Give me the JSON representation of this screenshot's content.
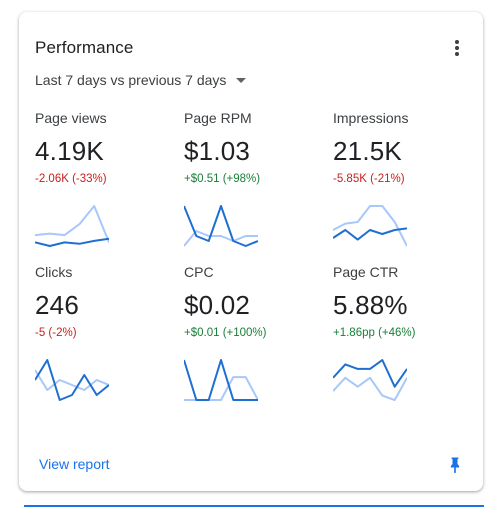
{
  "card": {
    "title": "Performance",
    "date_range": "Last 7 days vs previous 7 days",
    "view_report": "View report",
    "colors": {
      "current": "#1f6fd1",
      "previous": "#a8c7fa",
      "negative": "#c5221f",
      "positive": "#188038",
      "link": "#1a73e8"
    }
  },
  "metrics": [
    {
      "label": "Page views",
      "value": "4.19K",
      "change": "-2.06K (-33%)",
      "trend": "negative",
      "current": [
        3,
        2.5,
        3,
        2.8,
        3.2,
        3.5
      ],
      "previous": [
        4,
        4.2,
        4,
        5.5,
        8,
        3
      ]
    },
    {
      "label": "Page RPM",
      "value": "$1.03",
      "change": "+$0.51 (+98%)",
      "trend": "positive",
      "current": [
        9,
        3,
        2,
        9,
        2,
        1,
        2
      ],
      "previous": [
        1,
        4,
        3,
        3,
        2,
        3,
        3
      ]
    },
    {
      "label": "Impressions",
      "value": "21.5K",
      "change": "-5.85K (-21%)",
      "trend": "negative",
      "current": [
        3,
        4,
        2.8,
        4,
        3.5,
        4,
        4.2
      ],
      "previous": [
        4,
        4.8,
        5,
        7,
        7,
        5,
        2
      ]
    },
    {
      "label": "Clicks",
      "value": "246",
      "change": "-5 (-2%)",
      "trend": "negative",
      "current": [
        4,
        6,
        2,
        2.5,
        4.5,
        2.5,
        3.5
      ],
      "previous": [
        5,
        3,
        4,
        3.5,
        3,
        4,
        3.5
      ]
    },
    {
      "label": "CPC",
      "value": "$0.02",
      "change": "+$0.01 (+100%)",
      "trend": "positive",
      "current": [
        7,
        0,
        0,
        7,
        0,
        0,
        0
      ],
      "previous": [
        0,
        0,
        0,
        0,
        4,
        4,
        0
      ]
    },
    {
      "label": "Page CTR",
      "value": "5.88%",
      "change": "+1.86pp (+46%)",
      "trend": "positive",
      "current": [
        4,
        5.5,
        5,
        5,
        6,
        3,
        5
      ],
      "previous": [
        2.5,
        4,
        3,
        4,
        2,
        1.5,
        4
      ]
    }
  ]
}
